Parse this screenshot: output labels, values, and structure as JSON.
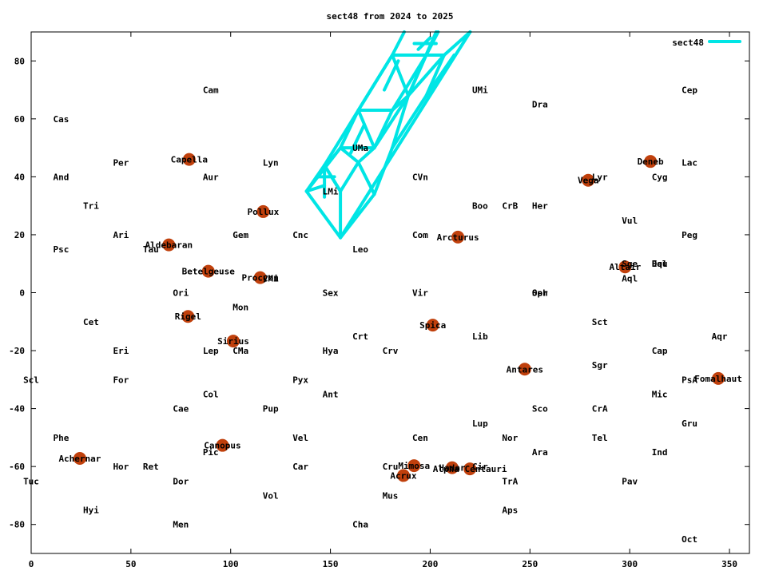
{
  "chart_data": {
    "type": "scatter",
    "title": "sect48 from 2024 to 2025",
    "xlabel": "",
    "ylabel": "",
    "xlim": [
      0,
      360
    ],
    "ylim": [
      -90,
      90
    ],
    "xticks": [
      0,
      50,
      100,
      150,
      200,
      250,
      300,
      350
    ],
    "yticks": [
      -80,
      -60,
      -40,
      -20,
      0,
      20,
      40,
      60,
      80
    ],
    "grid": false,
    "legend": {
      "position": "top-right",
      "entries": [
        "sect48"
      ]
    },
    "colors": {
      "sector": "#00e5e5",
      "star": "#c0400c",
      "text": "#000000",
      "frame": "#000000"
    },
    "constellations": [
      {
        "name": "Cam",
        "x": 90,
        "y": 70
      },
      {
        "name": "UMi",
        "x": 225,
        "y": 70
      },
      {
        "name": "Cep",
        "x": 330,
        "y": 70
      },
      {
        "name": "Dra",
        "x": 255,
        "y": 65
      },
      {
        "name": "Cas",
        "x": 15,
        "y": 60
      },
      {
        "name": "UMa",
        "x": 165,
        "y": 50
      },
      {
        "name": "Per",
        "x": 45,
        "y": 45
      },
      {
        "name": "Lyn",
        "x": 120,
        "y": 45
      },
      {
        "name": "Lac",
        "x": 330,
        "y": 45
      },
      {
        "name": "And",
        "x": 15,
        "y": 40
      },
      {
        "name": "Aur",
        "x": 90,
        "y": 40
      },
      {
        "name": "CVn",
        "x": 195,
        "y": 40
      },
      {
        "name": "Lyr",
        "x": 285,
        "y": 40
      },
      {
        "name": "Cyg",
        "x": 315,
        "y": 40
      },
      {
        "name": "LMi",
        "x": 150,
        "y": 35
      },
      {
        "name": "Tri",
        "x": 30,
        "y": 30
      },
      {
        "name": "Boo",
        "x": 225,
        "y": 30
      },
      {
        "name": "CrB",
        "x": 240,
        "y": 30
      },
      {
        "name": "Her",
        "x": 255,
        "y": 30
      },
      {
        "name": "Vul",
        "x": 300,
        "y": 25
      },
      {
        "name": "Ari",
        "x": 45,
        "y": 20
      },
      {
        "name": "Gem",
        "x": 105,
        "y": 20
      },
      {
        "name": "Cnc",
        "x": 135,
        "y": 20
      },
      {
        "name": "Com",
        "x": 195,
        "y": 20
      },
      {
        "name": "Peg",
        "x": 330,
        "y": 20
      },
      {
        "name": "Psc",
        "x": 15,
        "y": 15
      },
      {
        "name": "Tau",
        "x": 60,
        "y": 15
      },
      {
        "name": "Leo",
        "x": 165,
        "y": 15
      },
      {
        "name": "Sge",
        "x": 300,
        "y": 10
      },
      {
        "name": "Del",
        "x": 315,
        "y": 10
      },
      {
        "name": "Equ",
        "x": 315,
        "y": 10
      },
      {
        "name": "CMi",
        "x": 120,
        "y": 5
      },
      {
        "name": "Aql",
        "x": 300,
        "y": 5
      },
      {
        "name": "Ori",
        "x": 75,
        "y": 0
      },
      {
        "name": "Sex",
        "x": 150,
        "y": 0
      },
      {
        "name": "Vir",
        "x": 195,
        "y": 0
      },
      {
        "name": "Oph",
        "x": 255,
        "y": 0
      },
      {
        "name": "Ser",
        "x": 255,
        "y": 0
      },
      {
        "name": "Mon",
        "x": 105,
        "y": -5
      },
      {
        "name": "Cet",
        "x": 30,
        "y": -10
      },
      {
        "name": "Sct",
        "x": 285,
        "y": -10
      },
      {
        "name": "Crt",
        "x": 165,
        "y": -15
      },
      {
        "name": "Lib",
        "x": 225,
        "y": -15
      },
      {
        "name": "Aqr",
        "x": 345,
        "y": -15
      },
      {
        "name": "Eri",
        "x": 45,
        "y": -20
      },
      {
        "name": "Lep",
        "x": 90,
        "y": -20
      },
      {
        "name": "CMa",
        "x": 105,
        "y": -20
      },
      {
        "name": "Hya",
        "x": 150,
        "y": -20
      },
      {
        "name": "Crv",
        "x": 180,
        "y": -20
      },
      {
        "name": "Cap",
        "x": 315,
        "y": -20
      },
      {
        "name": "Sgr",
        "x": 285,
        "y": -25
      },
      {
        "name": "Scl",
        "x": 0,
        "y": -30
      },
      {
        "name": "For",
        "x": 45,
        "y": -30
      },
      {
        "name": "Pyx",
        "x": 135,
        "y": -30
      },
      {
        "name": "PsA",
        "x": 330,
        "y": -30
      },
      {
        "name": "Col",
        "x": 90,
        "y": -35
      },
      {
        "name": "Ant",
        "x": 150,
        "y": -35
      },
      {
        "name": "Mic",
        "x": 315,
        "y": -35
      },
      {
        "name": "Cae",
        "x": 75,
        "y": -40
      },
      {
        "name": "Pup",
        "x": 120,
        "y": -40
      },
      {
        "name": "Sco",
        "x": 255,
        "y": -40
      },
      {
        "name": "CrA",
        "x": 285,
        "y": -40
      },
      {
        "name": "Lup",
        "x": 225,
        "y": -45
      },
      {
        "name": "Gru",
        "x": 330,
        "y": -45
      },
      {
        "name": "Phe",
        "x": 15,
        "y": -50
      },
      {
        "name": "Vel",
        "x": 135,
        "y": -50
      },
      {
        "name": "Cen",
        "x": 195,
        "y": -50
      },
      {
        "name": "Nor",
        "x": 240,
        "y": -50
      },
      {
        "name": "Tel",
        "x": 285,
        "y": -50
      },
      {
        "name": "Pic",
        "x": 90,
        "y": -55
      },
      {
        "name": "Ara",
        "x": 255,
        "y": -55
      },
      {
        "name": "Ind",
        "x": 315,
        "y": -55
      },
      {
        "name": "Hor",
        "x": 45,
        "y": -60
      },
      {
        "name": "Ret",
        "x": 60,
        "y": -60
      },
      {
        "name": "Car",
        "x": 135,
        "y": -60
      },
      {
        "name": "Cru",
        "x": 180,
        "y": -60
      },
      {
        "name": "Cir",
        "x": 225,
        "y": -60
      },
      {
        "name": "Tuc",
        "x": 0,
        "y": -65
      },
      {
        "name": "Dor",
        "x": 75,
        "y": -65
      },
      {
        "name": "TrA",
        "x": 240,
        "y": -65
      },
      {
        "name": "Pav",
        "x": 300,
        "y": -65
      },
      {
        "name": "Vol",
        "x": 120,
        "y": -70
      },
      {
        "name": "Mus",
        "x": 180,
        "y": -70
      },
      {
        "name": "Hyi",
        "x": 30,
        "y": -75
      },
      {
        "name": "Aps",
        "x": 240,
        "y": -75
      },
      {
        "name": "Men",
        "x": 75,
        "y": -80
      },
      {
        "name": "Cha",
        "x": 165,
        "y": -80
      },
      {
        "name": "Oct",
        "x": 330,
        "y": -85
      }
    ],
    "stars": [
      {
        "name": "Capella",
        "x": 79.2,
        "y": 46.0
      },
      {
        "name": "Deneb",
        "x": 310.4,
        "y": 45.3
      },
      {
        "name": "Vega",
        "x": 279.2,
        "y": 38.8
      },
      {
        "name": "Pollux",
        "x": 116.3,
        "y": 28.0
      },
      {
        "name": "Arcturus",
        "x": 213.9,
        "y": 19.2
      },
      {
        "name": "Aldebaran",
        "x": 69.0,
        "y": 16.5
      },
      {
        "name": "Altair",
        "x": 297.7,
        "y": 8.9
      },
      {
        "name": "Betelgeuse",
        "x": 88.8,
        "y": 7.4
      },
      {
        "name": "Procyon",
        "x": 114.8,
        "y": 5.2
      },
      {
        "name": "Rigel",
        "x": 78.6,
        "y": -8.2
      },
      {
        "name": "Spica",
        "x": 201.3,
        "y": -11.2
      },
      {
        "name": "Sirius",
        "x": 101.3,
        "y": -16.7
      },
      {
        "name": "Antares",
        "x": 247.4,
        "y": -26.4
      },
      {
        "name": "Fomalhaut",
        "x": 344.4,
        "y": -29.6
      },
      {
        "name": "Canopus",
        "x": 95.9,
        "y": -52.7
      },
      {
        "name": "Achernar",
        "x": 24.4,
        "y": -57.2
      },
      {
        "name": "Mimosa",
        "x": 191.9,
        "y": -59.7
      },
      {
        "name": "Hadar",
        "x": 211.0,
        "y": -60.4
      },
      {
        "name": "Alpha Centauri",
        "x": 219.9,
        "y": -60.8
      },
      {
        "name": "Acrux",
        "x": 186.6,
        "y": -63.1
      }
    ],
    "series": [
      {
        "name": "sect48",
        "polylines": [
          [
            [
              155,
              19
            ],
            [
              138,
              35
            ],
            [
              147,
              44
            ],
            [
              155,
              35
            ],
            [
              155,
              19
            ]
          ],
          [
            [
              138,
              35
            ],
            [
              155,
              50
            ],
            [
              164,
              63
            ],
            [
              172,
              50
            ],
            [
              164,
              45
            ],
            [
              155,
              50
            ]
          ],
          [
            [
              147,
              44
            ],
            [
              164,
              63
            ],
            [
              181,
              82
            ],
            [
              189,
              68
            ],
            [
              181,
              63
            ],
            [
              172,
              50
            ]
          ],
          [
            [
              164,
              63
            ],
            [
              181,
              82
            ],
            [
              187,
              90
            ]
          ],
          [
            [
              155,
              35
            ],
            [
              164,
              45
            ],
            [
              155,
              35
            ]
          ],
          [
            [
              155,
              19
            ],
            [
              220,
              90
            ]
          ],
          [
            [
              172,
              50
            ],
            [
              189,
              68
            ],
            [
              203,
              90
            ]
          ],
          [
            [
              147,
              44
            ],
            [
              155,
              35
            ]
          ],
          [
            [
              138,
              35
            ],
            [
              155,
              50
            ]
          ],
          [
            [
              155,
              50
            ],
            [
              172,
              50
            ]
          ],
          [
            [
              164,
              63
            ],
            [
              181,
              63
            ]
          ],
          [
            [
              181,
              82
            ],
            [
              198,
              82
            ]
          ],
          [
            [
              181,
              63
            ],
            [
              198,
              82
            ]
          ],
          [
            [
              189,
              68
            ],
            [
              207,
              82
            ]
          ],
          [
            [
              198,
              82
            ],
            [
              207,
              82
            ]
          ],
          [
            [
              198,
              82
            ],
            [
              204,
              90
            ]
          ],
          [
            [
              207,
              82
            ],
            [
              220,
              90
            ]
          ],
          [
            [
              164,
              45
            ],
            [
              172,
              34
            ]
          ],
          [
            [
              172,
              34
            ],
            [
              181,
              50
            ]
          ],
          [
            [
              181,
              50
            ],
            [
              189,
              68
            ]
          ],
          [
            [
              189,
              68
            ],
            [
              198,
              82
            ]
          ],
          [
            [
              172,
              34
            ],
            [
              155,
              19
            ]
          ],
          [
            [
              181,
              50
            ],
            [
              198,
              68
            ]
          ],
          [
            [
              198,
              68
            ],
            [
              207,
              82
            ]
          ],
          [
            [
              198,
              68
            ],
            [
              212,
              82
            ]
          ],
          [
            [
              147,
              37
            ],
            [
              138,
              35
            ]
          ],
          [
            [
              147,
              44
            ],
            [
              147,
              33
            ]
          ],
          [
            [
              143,
              40
            ],
            [
              152,
              40
            ]
          ],
          [
            [
              160,
              48
            ],
            [
              167,
              58
            ]
          ],
          [
            [
              177,
              70
            ],
            [
              184,
              80
            ]
          ],
          [
            [
              192,
              86
            ],
            [
              203,
              86
            ]
          ],
          [
            [
              200,
              88
            ],
            [
              194,
              84
            ]
          ]
        ]
      }
    ]
  }
}
